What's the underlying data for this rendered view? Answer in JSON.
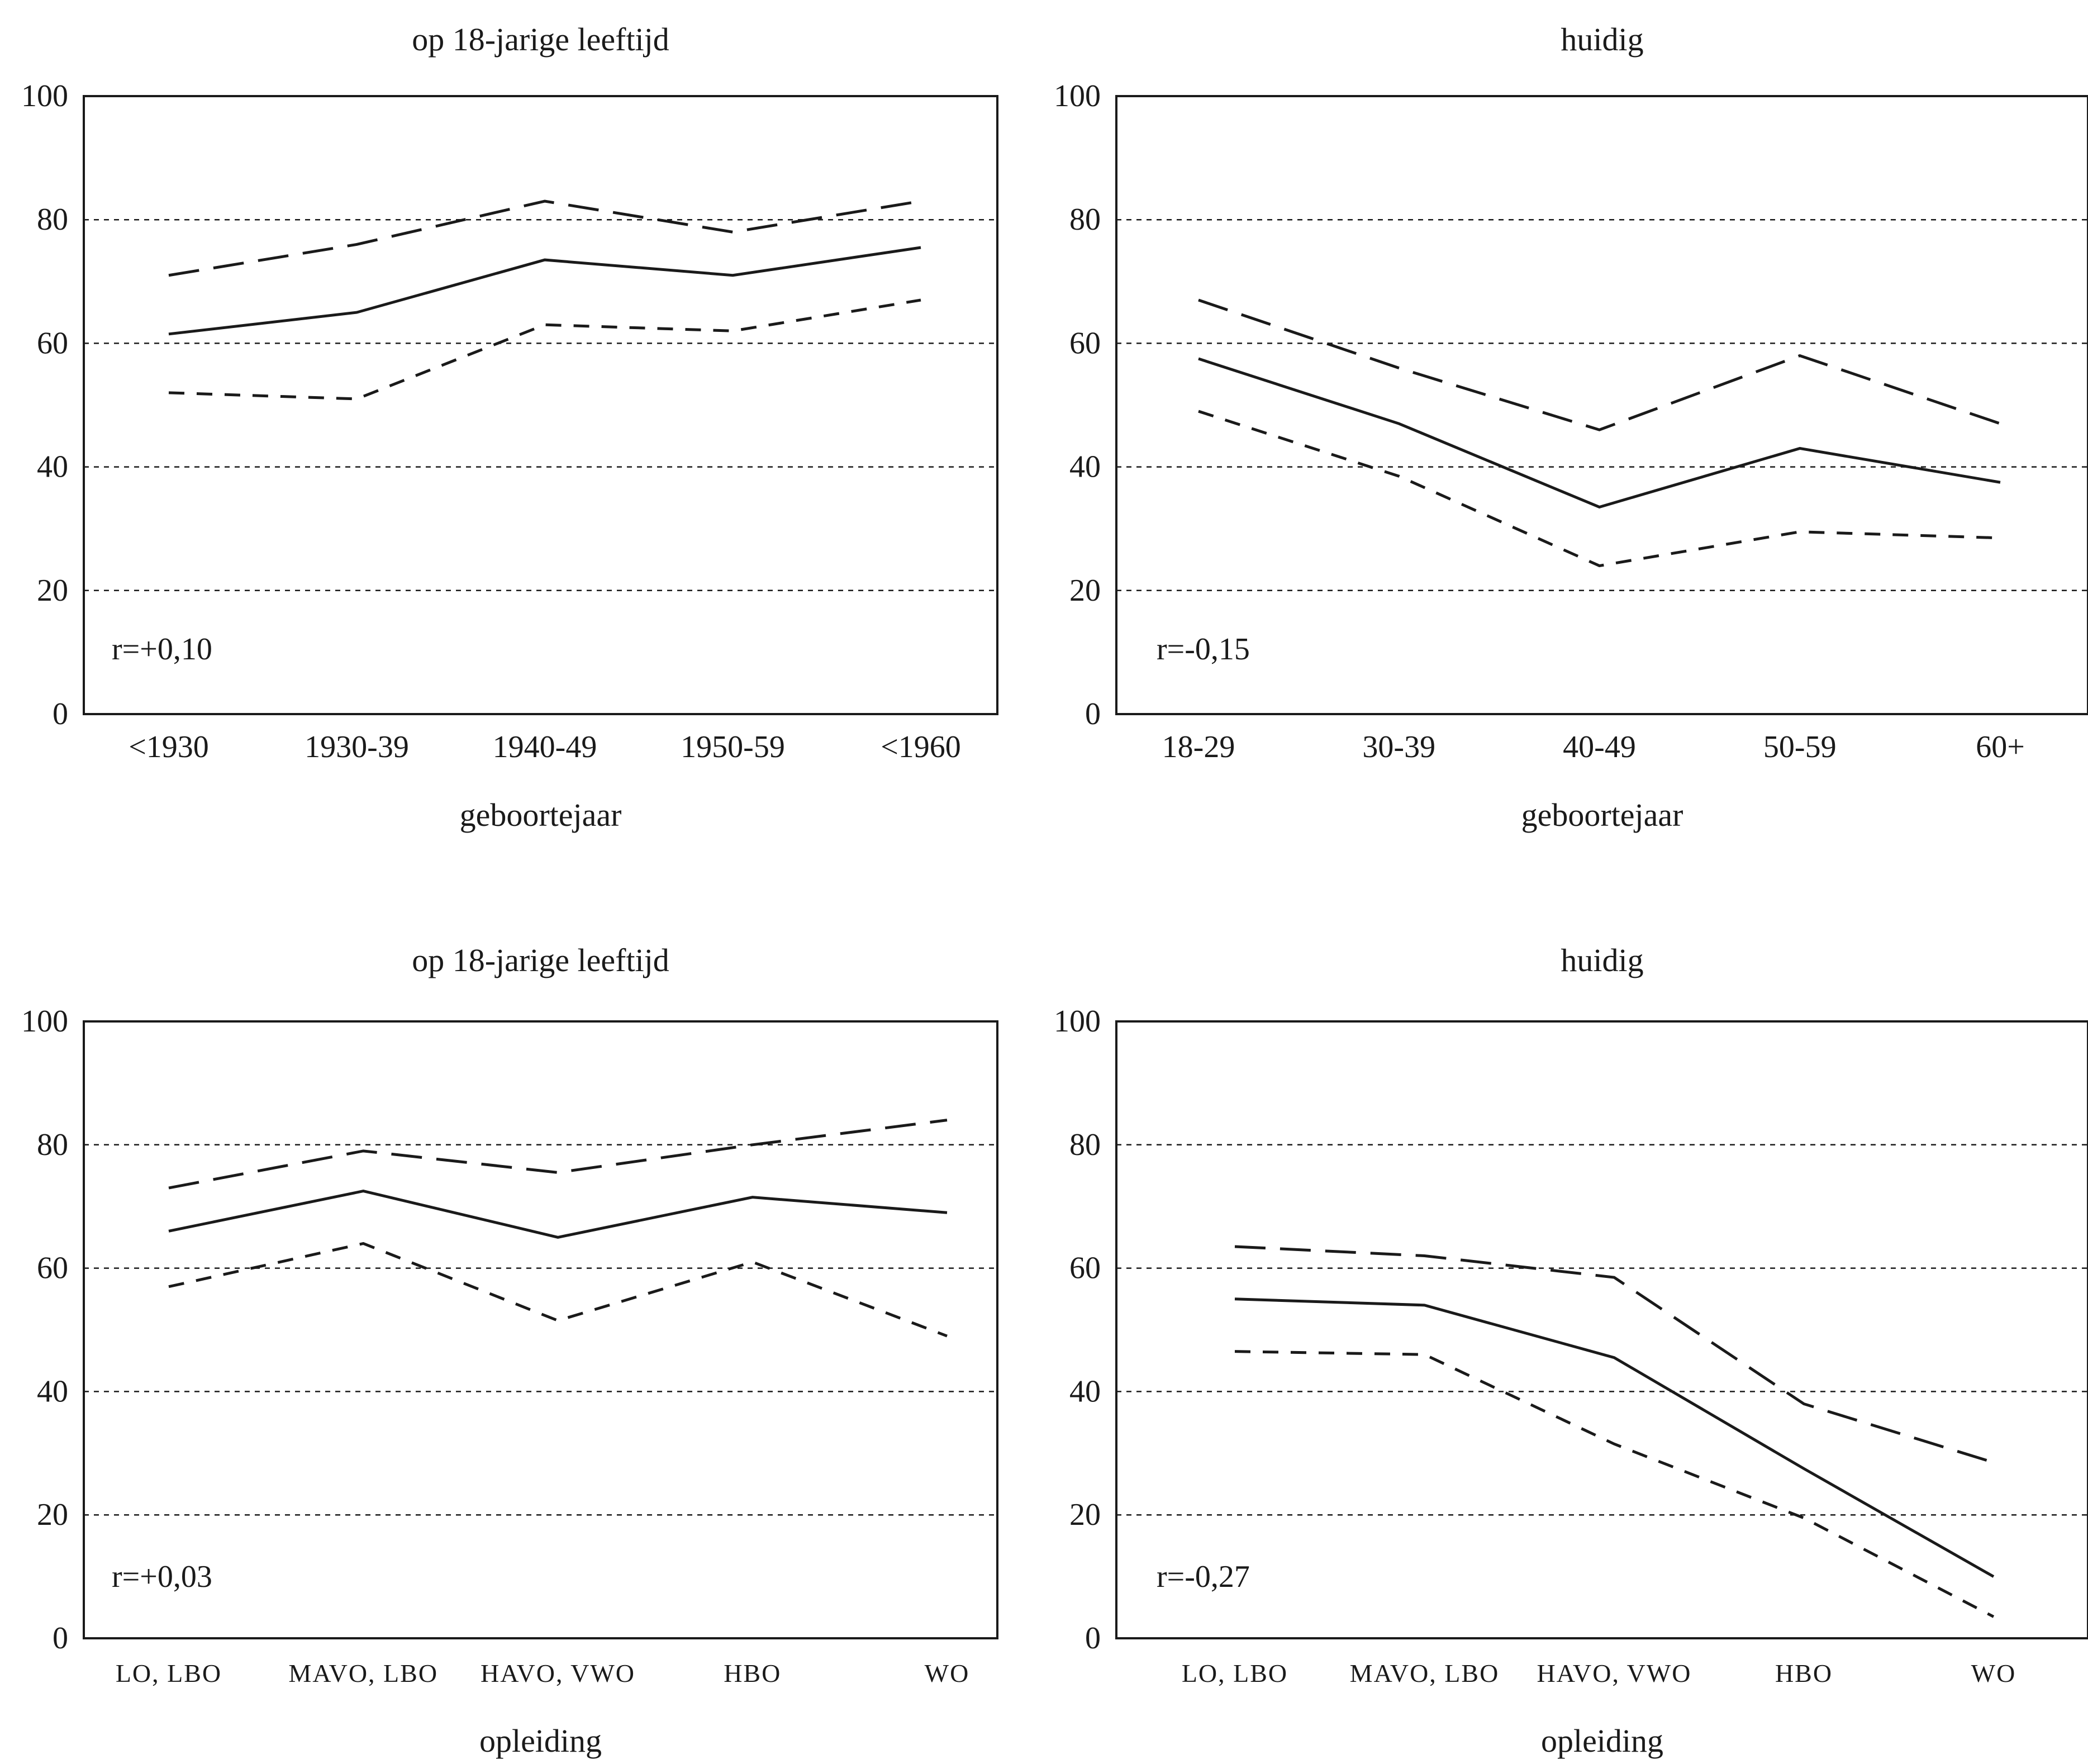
{
  "chart_data": [
    {
      "type": "line",
      "title": "op 18-jarige leeftijd",
      "xlabel": "geboortejaar",
      "ylabel": "",
      "categories": [
        "<1930",
        "1930-39",
        "1940-49",
        "1950-59",
        "<1960"
      ],
      "ylim": [
        0,
        100
      ],
      "yticks": [
        "0",
        "20",
        "40",
        "60",
        "80",
        "100"
      ],
      "grid": true,
      "annotation": "r=+0,10",
      "series": [
        {
          "style": "long-dash",
          "values": [
            71,
            76,
            83,
            78,
            83
          ]
        },
        {
          "style": "solid",
          "values": [
            61.5,
            65,
            73.5,
            71,
            75.5
          ]
        },
        {
          "style": "short-dash",
          "values": [
            52,
            51,
            63,
            62,
            67
          ]
        }
      ]
    },
    {
      "type": "line",
      "title": "huidig",
      "xlabel": "geboortejaar",
      "ylabel": "",
      "categories": [
        "18-29",
        "30-39",
        "40-49",
        "50-59",
        "60+"
      ],
      "ylim": [
        0,
        100
      ],
      "yticks": [
        "0",
        "20",
        "40",
        "60",
        "80",
        "100"
      ],
      "grid": true,
      "annotation": "r=-0,15",
      "series": [
        {
          "style": "long-dash",
          "values": [
            67,
            56,
            46,
            58,
            47
          ]
        },
        {
          "style": "solid",
          "values": [
            57.5,
            47,
            33.5,
            43,
            37.5
          ]
        },
        {
          "style": "short-dash",
          "values": [
            49,
            38.5,
            24,
            29.5,
            28.5
          ]
        }
      ]
    },
    {
      "type": "line",
      "title": "op 18-jarige leeftijd",
      "xlabel": "opleiding",
      "ylabel": "",
      "categories": [
        "LO, LBO",
        "MAVO, LBO",
        "HAVO, VWO",
        "HBO",
        "WO"
      ],
      "ylim": [
        0,
        100
      ],
      "yticks": [
        "0",
        "20",
        "40",
        "60",
        "80",
        "100"
      ],
      "grid": true,
      "annotation": "r=+0,03",
      "series": [
        {
          "style": "long-dash",
          "values": [
            73,
            79,
            75.5,
            80,
            84
          ]
        },
        {
          "style": "solid",
          "values": [
            66,
            72.5,
            65,
            71.5,
            69
          ]
        },
        {
          "style": "short-dash",
          "values": [
            57,
            64,
            51.5,
            61,
            49
          ]
        }
      ]
    },
    {
      "type": "line",
      "title": "huidig",
      "xlabel": "opleiding",
      "ylabel": "",
      "categories": [
        "LO, LBO",
        "MAVO, LBO",
        "HAVO, VWO",
        "HBO",
        "WO"
      ],
      "ylim": [
        0,
        100
      ],
      "yticks": [
        "0",
        "20",
        "40",
        "60",
        "80",
        "100"
      ],
      "grid": true,
      "annotation": "r=-0,27",
      "series": [
        {
          "style": "long-dash",
          "values": [
            63.5,
            62,
            58.5,
            38,
            28.5
          ]
        },
        {
          "style": "solid",
          "values": [
            55,
            54,
            45.5,
            27.5,
            10
          ]
        },
        {
          "style": "short-dash",
          "values": [
            46.5,
            46,
            31.5,
            19.5,
            3.5
          ]
        }
      ]
    }
  ]
}
